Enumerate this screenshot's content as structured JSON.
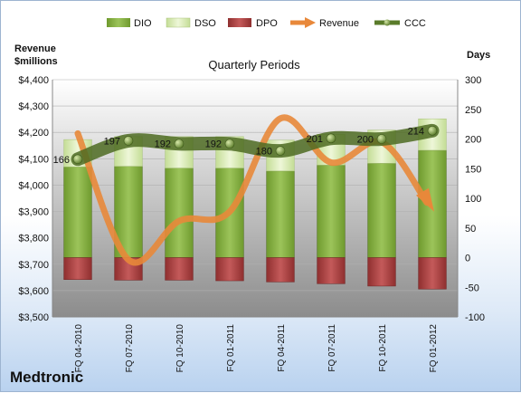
{
  "chart_data": {
    "type": "bar",
    "title": "Quarterly Periods",
    "left_axis_label": [
      "Revenue",
      "$millions"
    ],
    "right_axis_label": "Days",
    "company": "Medtronic",
    "categories": [
      "FQ 04-2010",
      "FQ 07-2010",
      "FQ 10-2010",
      "FQ 01-2011",
      "FQ 04-2011",
      "FQ 07-2011",
      "FQ 10-2011",
      "FQ 01-2012"
    ],
    "left_axis": {
      "min": 3500,
      "max": 4400,
      "step": 100,
      "ticks": [
        "$3,500",
        "$3,600",
        "$3,700",
        "$3,800",
        "$3,900",
        "$4,000",
        "$4,100",
        "$4,200",
        "$4,300",
        "$4,400"
      ]
    },
    "right_axis": {
      "min": -100,
      "max": 300,
      "step": 50,
      "ticks": [
        "-100",
        "-50",
        "0",
        "50",
        "100",
        "150",
        "200",
        "250",
        "300"
      ]
    },
    "series": [
      {
        "name": "DIO",
        "axis": "right",
        "kind": "stacked-bar",
        "color": "#8db544",
        "values": [
          153,
          154,
          151,
          151,
          146,
          156,
          159,
          181
        ]
      },
      {
        "name": "DSO",
        "axis": "right",
        "kind": "stacked-bar",
        "color": "#d8ecb0",
        "values": [
          46,
          50,
          53,
          53,
          52,
          52,
          56,
          53
        ]
      },
      {
        "name": "DPO",
        "axis": "right",
        "kind": "stacked-bar",
        "color": "#b54a4a",
        "values": [
          -37,
          -38,
          -38,
          -39,
          -41,
          -44,
          -48,
          -53
        ]
      },
      {
        "name": "Revenue",
        "axis": "left",
        "kind": "line",
        "color": "#e8883a",
        "values": [
          4196,
          3717,
          3864,
          3900,
          4253,
          4086,
          4163,
          3913
        ]
      },
      {
        "name": "CCC",
        "axis": "right",
        "kind": "line",
        "color": "#5a7b2a",
        "values": [
          166,
          197,
          192,
          192,
          180,
          201,
          200,
          214
        ],
        "labels": [
          "166",
          "197",
          "192",
          "192",
          "180",
          "201",
          "200",
          "214"
        ]
      }
    ],
    "legend_position": "top",
    "grid": true
  }
}
